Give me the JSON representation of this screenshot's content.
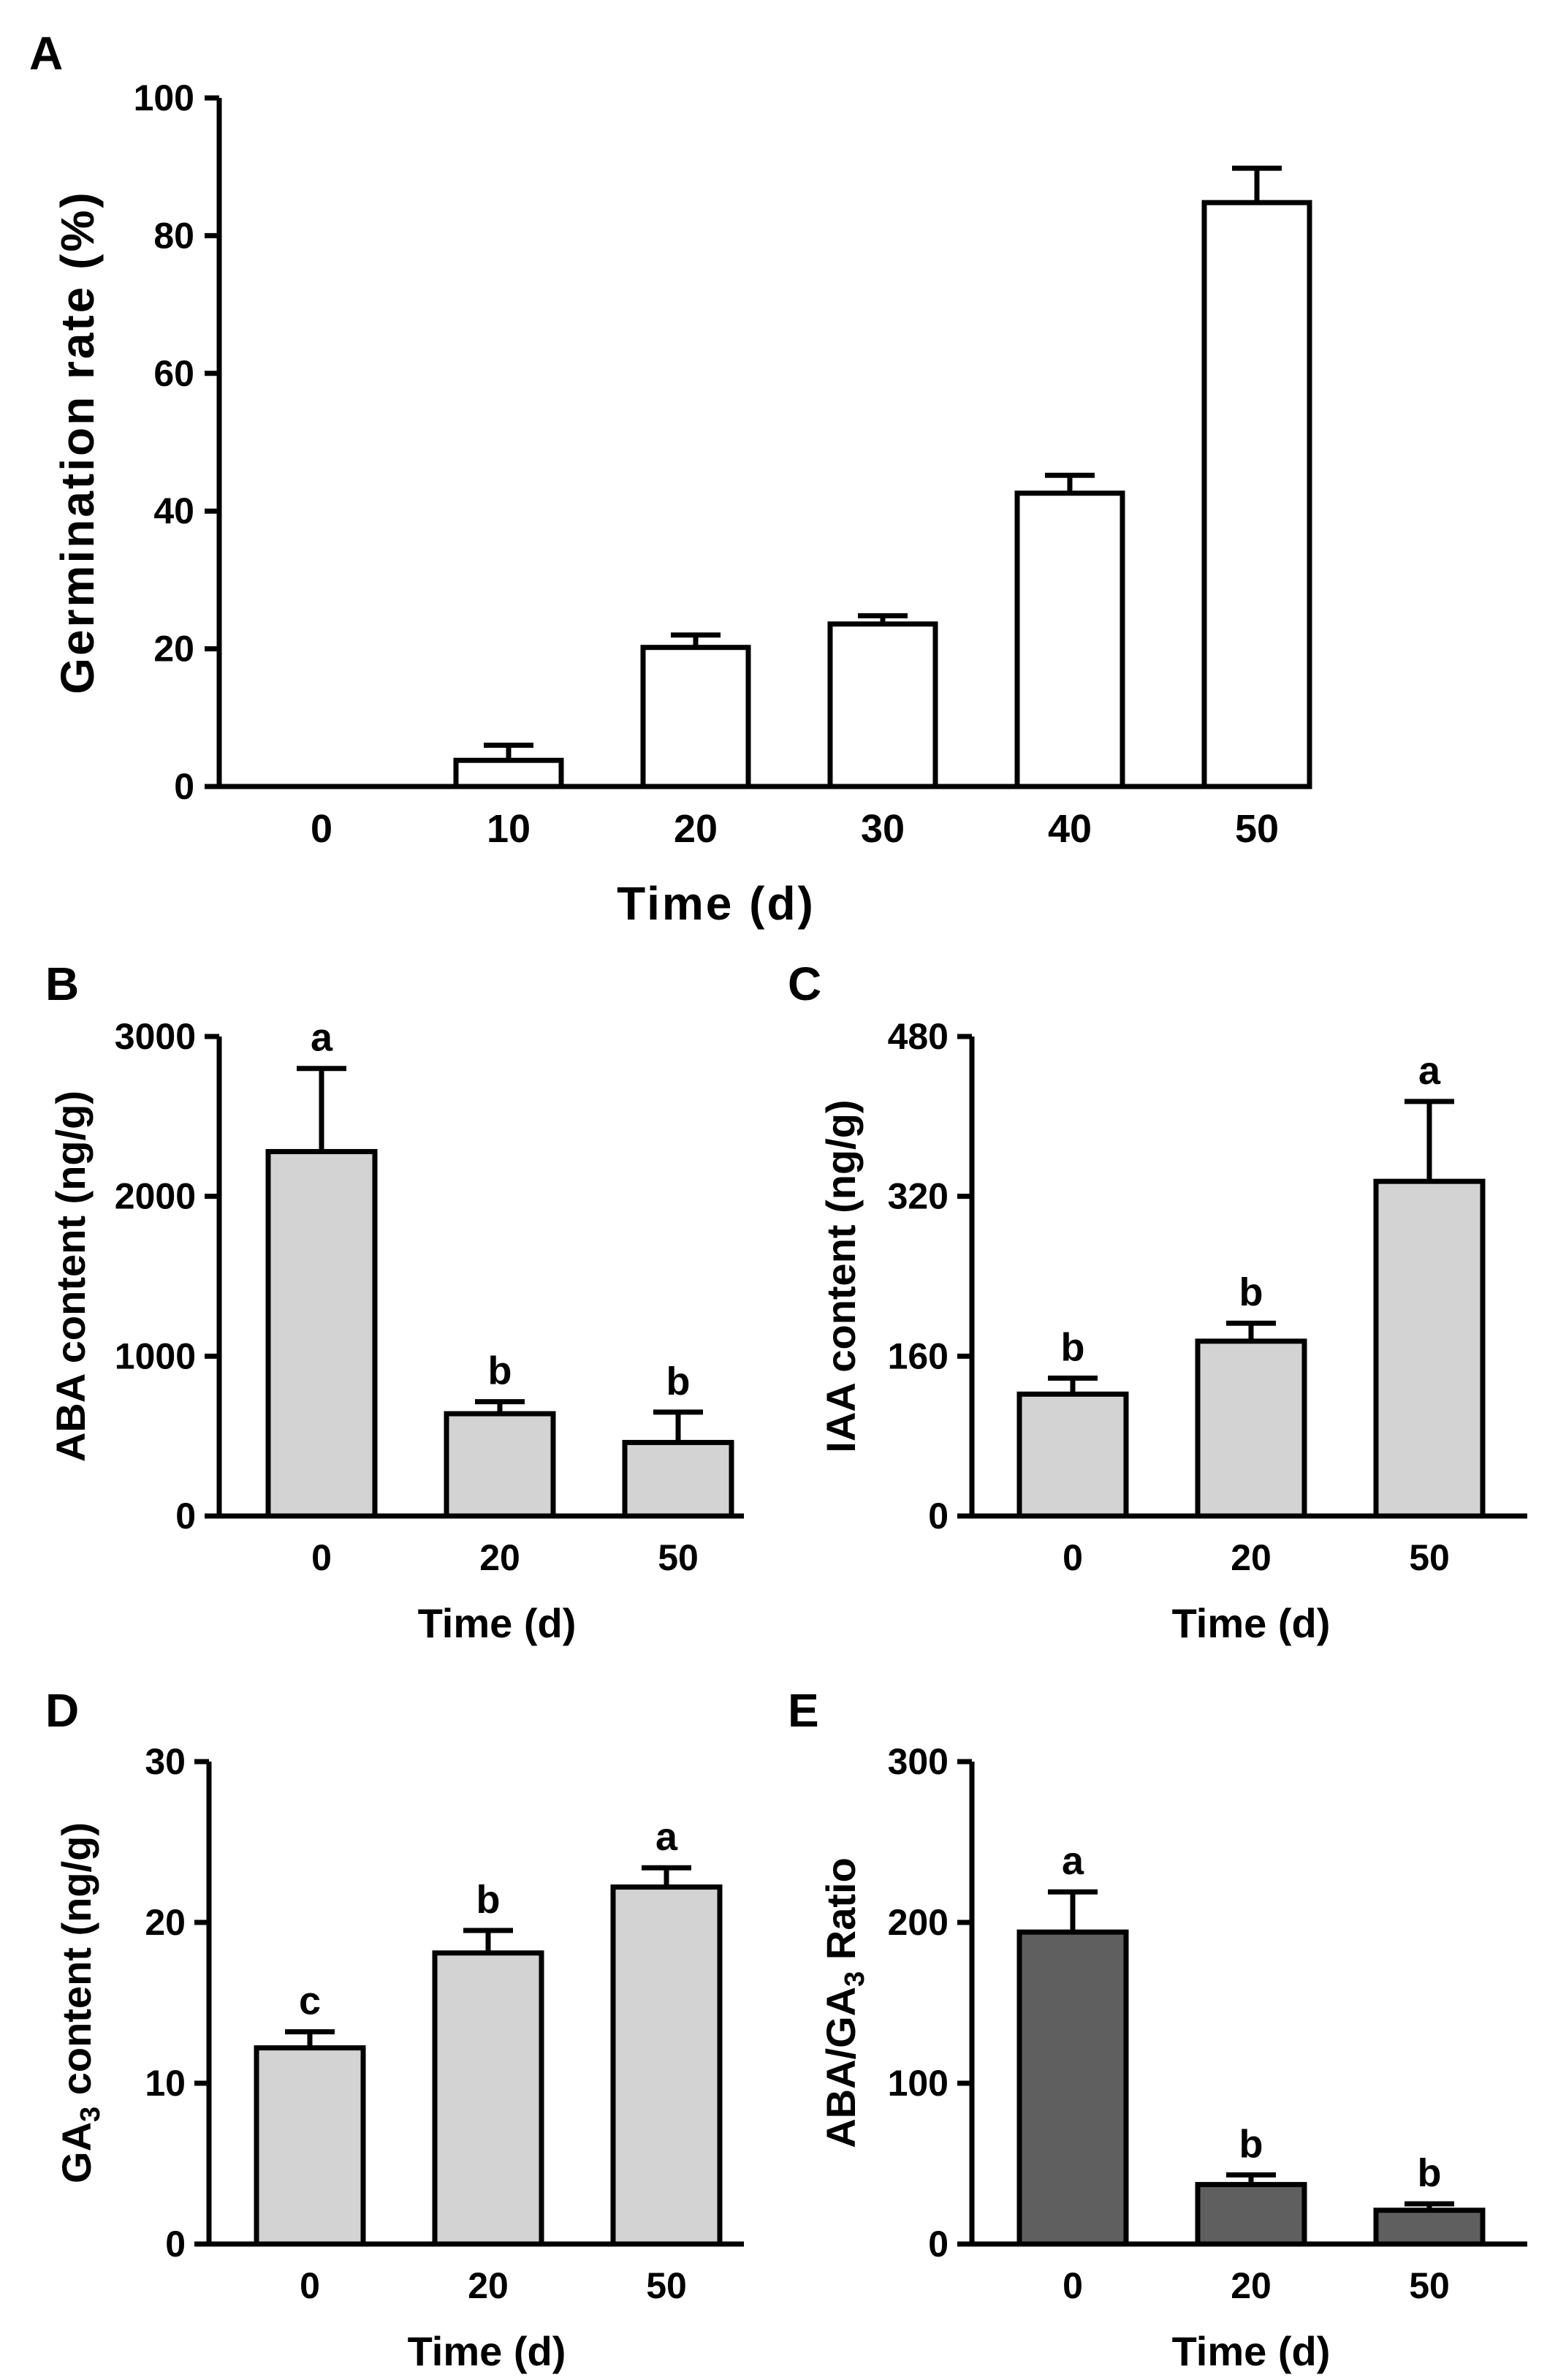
{
  "chart_data": [
    {
      "panel": "A",
      "type": "bar",
      "categories": [
        "0",
        "10",
        "20",
        "30",
        "40",
        "50"
      ],
      "values": [
        0,
        3.8,
        20.2,
        23.6,
        42.6,
        84.8
      ],
      "errors": [
        0,
        2.2,
        1.8,
        1.2,
        2.6,
        5.0
      ],
      "xlabel": "Time (d)",
      "ylabel": "Germination rate (%)",
      "ylim": [
        0,
        100
      ],
      "yticks": [
        "0",
        "20",
        "40",
        "60",
        "80",
        "100"
      ],
      "bar_color": "#ffffff",
      "significance": [],
      "grid": false
    },
    {
      "panel": "B",
      "type": "bar",
      "categories": [
        "0",
        "20",
        "50"
      ],
      "values": [
        2280,
        640,
        460
      ],
      "errors": [
        520,
        75,
        190
      ],
      "xlabel": "Time (d)",
      "ylabel": "ABA content (ng/g)",
      "ylim": [
        0,
        3000
      ],
      "yticks": [
        "0",
        "1000",
        "2000",
        "3000"
      ],
      "bar_color": "#d3d3d3",
      "significance": [
        "a",
        "b",
        "b"
      ],
      "grid": false
    },
    {
      "panel": "C",
      "type": "bar",
      "categories": [
        "0",
        "20",
        "50"
      ],
      "values": [
        122,
        175,
        335
      ],
      "errors": [
        16,
        18,
        80
      ],
      "xlabel": "Time (d)",
      "ylabel": "IAA content (ng/g)",
      "ylim": [
        0,
        480
      ],
      "yticks": [
        "0",
        "160",
        "320",
        "480"
      ],
      "bar_color": "#d3d3d3",
      "significance": [
        "b",
        "b",
        "a"
      ],
      "grid": false
    },
    {
      "panel": "D",
      "type": "bar",
      "categories": [
        "0",
        "20",
        "50"
      ],
      "values": [
        12.2,
        18.1,
        22.2
      ],
      "errors": [
        1.0,
        1.4,
        1.2
      ],
      "xlabel": "Time (d)",
      "ylabel": "GA3 content (ng/g)",
      "ylabel_main": "GA",
      "ylabel_sub": "3",
      "ylabel_rest": " content (ng/g)",
      "ylim": [
        0,
        30
      ],
      "yticks": [
        "0",
        "10",
        "20",
        "30"
      ],
      "bar_color": "#d3d3d3",
      "significance": [
        "c",
        "b",
        "a"
      ],
      "grid": false
    },
    {
      "panel": "E",
      "type": "bar",
      "categories": [
        "0",
        "20",
        "50"
      ],
      "values": [
        194,
        37,
        21
      ],
      "errors": [
        25,
        6,
        4
      ],
      "xlabel": "Time (d)",
      "ylabel": "ABA/GA3 Ratio",
      "ylabel_main": "ABA/GA",
      "ylabel_sub": "3",
      "ylabel_rest": " Ratio",
      "ylim": [
        0,
        300
      ],
      "yticks": [
        "0",
        "100",
        "200",
        "300"
      ],
      "bar_color": "#5f5f5f",
      "significance": [
        "a",
        "b",
        "b"
      ],
      "grid": false
    }
  ]
}
